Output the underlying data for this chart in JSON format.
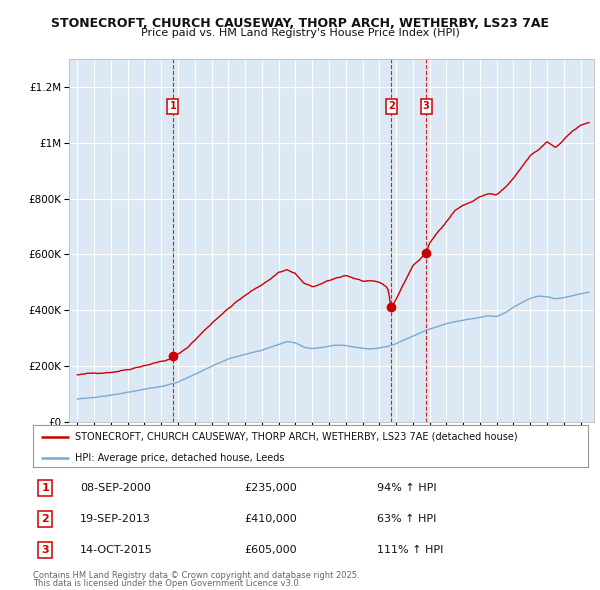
{
  "title1": "STONECROFT, CHURCH CAUSEWAY, THORP ARCH, WETHERBY, LS23 7AE",
  "title2": "Price paid vs. HM Land Registry's House Price Index (HPI)",
  "red_label": "STONECROFT, CHURCH CAUSEWAY, THORP ARCH, WETHERBY, LS23 7AE (detached house)",
  "blue_label": "HPI: Average price, detached house, Leeds",
  "sales": [
    {
      "num": 1,
      "date": "08-SEP-2000",
      "price": 235000,
      "pct": "94%",
      "dir": "↑"
    },
    {
      "num": 2,
      "date": "19-SEP-2013",
      "price": 410000,
      "pct": "63%",
      "dir": "↑"
    },
    {
      "num": 3,
      "date": "14-OCT-2015",
      "price": 605000,
      "pct": "111%",
      "dir": "↑"
    }
  ],
  "sale_years": [
    2000.69,
    2013.72,
    2015.79
  ],
  "sale_prices": [
    235000,
    410000,
    605000
  ],
  "footnote1": "Contains HM Land Registry data © Crown copyright and database right 2025.",
  "footnote2": "This data is licensed under the Open Government Licence v3.0.",
  "plot_bg": "#dce9f5",
  "red_color": "#cc0000",
  "blue_color": "#7aaad0",
  "ylim_max": 1300000,
  "xlim": [
    1994.5,
    2025.8
  ]
}
